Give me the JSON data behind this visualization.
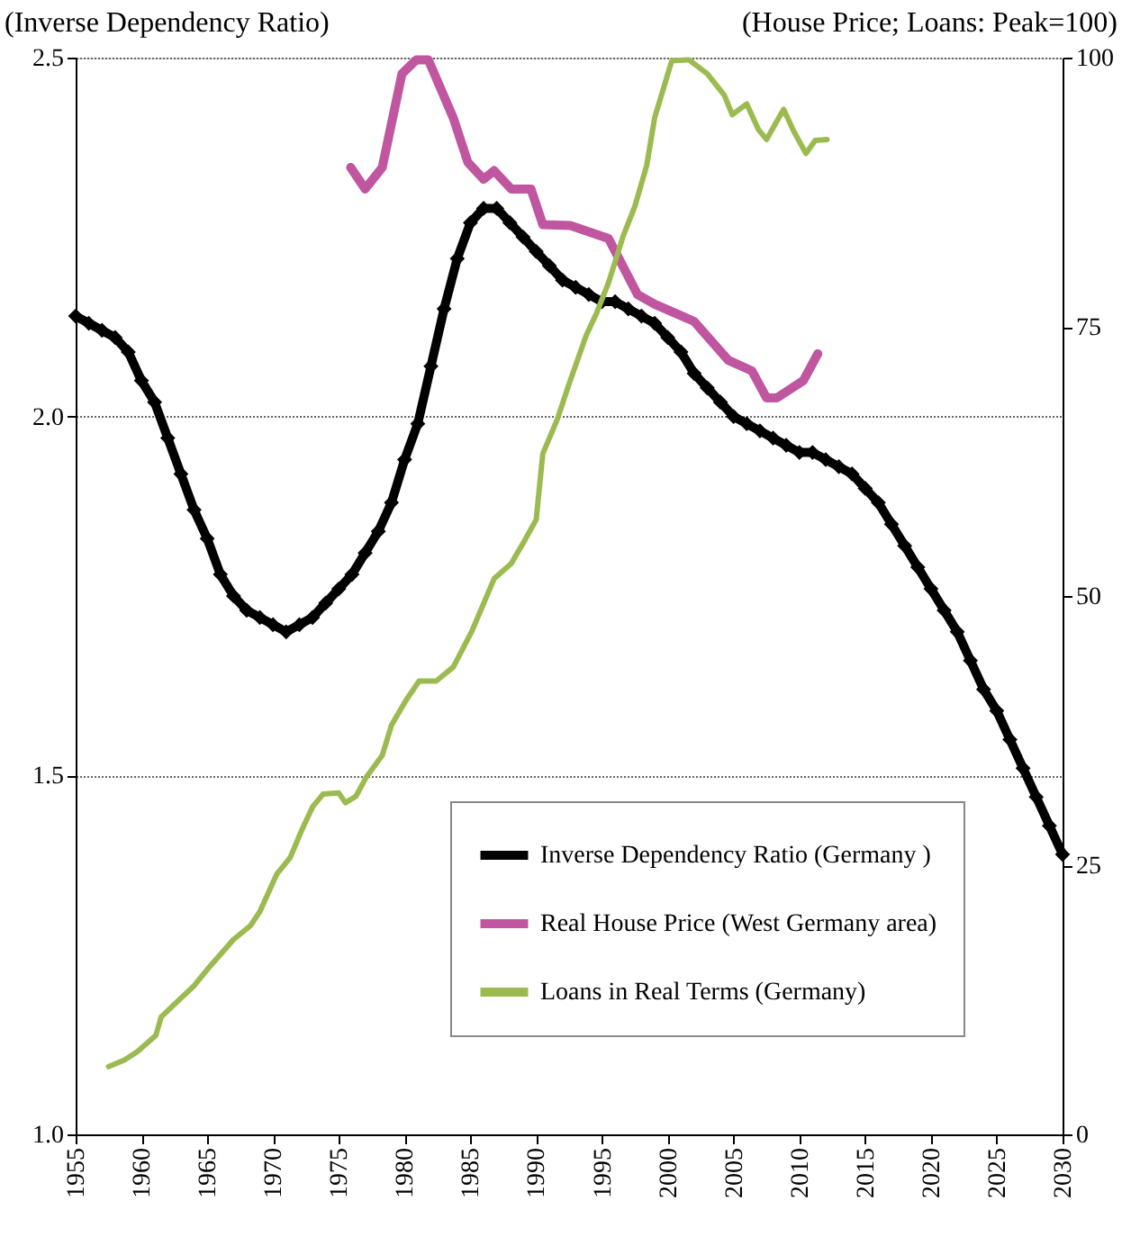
{
  "chart_data": {
    "type": "line",
    "ylabel": "(Inverse Dependency Ratio)",
    "y2label": "(House Price; Loans: Peak=100)",
    "xlim": [
      1955,
      2030
    ],
    "xticks": [
      1955,
      1960,
      1965,
      1970,
      1975,
      1980,
      1985,
      1990,
      1995,
      2000,
      2005,
      2010,
      2015,
      2020,
      2025,
      2030
    ],
    "ylim": [
      1.0,
      2.5
    ],
    "yticks": [
      {
        "value": 1.0,
        "label": "1.0"
      },
      {
        "value": 1.5,
        "label": "1.5"
      },
      {
        "value": 2.0,
        "label": "2.0"
      },
      {
        "value": 2.5,
        "label": "2.5"
      }
    ],
    "y2lim": [
      0,
      100
    ],
    "y2ticks": [
      0,
      25,
      50,
      75,
      100
    ],
    "grid": "y",
    "legend": "bottom right",
    "series": [
      {
        "name": "Inverse Dependency Ratio (Germany )",
        "color": "#000000",
        "marker": "diamond",
        "x": [
          1955,
          1956,
          1957,
          1958,
          1959,
          1960,
          1961,
          1962,
          1963,
          1964,
          1965,
          1966,
          1967,
          1968,
          1969,
          1970,
          1971,
          1972,
          1973,
          1974,
          1975,
          1976,
          1977,
          1978,
          1979,
          1980,
          1981,
          1982,
          1983,
          1984,
          1985,
          1986,
          1987,
          1988,
          1989,
          1990,
          1991,
          1992,
          1993,
          1994,
          1995,
          1996,
          1997,
          1998,
          1999,
          2000,
          2001,
          2002,
          2003,
          2004,
          2005,
          2006,
          2007,
          2008,
          2009,
          2010,
          2011,
          2012,
          2013,
          2014,
          2015,
          2016,
          2017,
          2018,
          2019,
          2020,
          2021,
          2022,
          2023,
          2024,
          2025,
          2026,
          2027,
          2028,
          2029,
          2030
        ],
        "values": [
          2.14,
          2.13,
          2.12,
          2.11,
          2.09,
          2.05,
          2.02,
          1.97,
          1.92,
          1.87,
          1.83,
          1.78,
          1.75,
          1.73,
          1.72,
          1.71,
          1.7,
          1.71,
          1.72,
          1.74,
          1.76,
          1.78,
          1.81,
          1.84,
          1.88,
          1.94,
          1.99,
          2.07,
          2.15,
          2.22,
          2.27,
          2.29,
          2.29,
          2.27,
          2.25,
          2.23,
          2.21,
          2.19,
          2.18,
          2.17,
          2.16,
          2.16,
          2.15,
          2.14,
          2.13,
          2.11,
          2.09,
          2.06,
          2.04,
          2.02,
          2.0,
          1.99,
          1.98,
          1.97,
          1.96,
          1.95,
          1.95,
          1.94,
          1.93,
          1.92,
          1.9,
          1.88,
          1.85,
          1.82,
          1.79,
          1.76,
          1.73,
          1.7,
          1.66,
          1.62,
          1.59,
          1.55,
          1.51,
          1.47,
          1.43,
          1.39
        ]
      },
      {
        "name": "Real House Price (West Germany area)",
        "color": "#c055a0",
        "axis": "y2",
        "marker": "none",
        "x": [
          1975.9,
          1977.0,
          1978.3,
          1979.8,
          1980.9,
          1981.8,
          1983.7,
          1984.8,
          1986.0,
          1986.8,
          1988.1,
          1989.6,
          1990.5,
          1992.6,
          1995.5,
          1997.7,
          1999.0,
          2002.0,
          2004.6,
          2006.4,
          2007.5,
          2008.3,
          2010.3,
          2011.4
        ],
        "values": [
          89.8,
          87.8,
          89.8,
          98.5,
          99.8,
          99.8,
          94.4,
          90.3,
          88.7,
          89.5,
          87.8,
          87.8,
          84.5,
          84.4,
          83.2,
          78.0,
          77.1,
          75.5,
          71.9,
          70.9,
          68.4,
          68.4,
          70.0,
          72.5
        ]
      },
      {
        "name": "Loans in Real Terms (Germany)",
        "color": "#9bbb50",
        "axis": "y2",
        "marker": "none",
        "x": [
          1957.5,
          1958.7,
          1959.7,
          1961.1,
          1961.5,
          1962.7,
          1964.0,
          1965.2,
          1967.0,
          1968.3,
          1969.0,
          1970.3,
          1971.3,
          1972.2,
          1973.0,
          1973.8,
          1975.0,
          1975.5,
          1976.3,
          1977.1,
          1978.3,
          1979.0,
          1980.1,
          1981.1,
          1982.4,
          1983.7,
          1985.1,
          1986.8,
          1988.1,
          1989.0,
          1990.0,
          1990.5,
          1991.6,
          1992.5,
          1993.8,
          1994.6,
          1995.5,
          1996.6,
          1997.5,
          1998.4,
          1999.0,
          2000.3,
          2001.6,
          2003.0,
          2004.3,
          2004.9,
          2006.0,
          2006.9,
          2007.5,
          2008.8,
          2009.6,
          2010.5,
          2011.2,
          2012.1
        ],
        "values": [
          6.3,
          6.9,
          7.7,
          9.2,
          10.9,
          12.3,
          13.8,
          15.6,
          18.1,
          19.4,
          20.7,
          24.2,
          25.7,
          28.3,
          30.4,
          31.6,
          31.7,
          30.8,
          31.4,
          33.2,
          35.2,
          38.0,
          40.3,
          42.1,
          42.1,
          43.4,
          46.7,
          51.6,
          53.0,
          54.9,
          57.1,
          63.2,
          66.4,
          69.7,
          74.2,
          76.3,
          79.1,
          83.4,
          86.2,
          90.0,
          94.4,
          99.7,
          99.8,
          98.5,
          96.5,
          94.7,
          95.7,
          93.3,
          92.4,
          95.2,
          93.1,
          91.1,
          92.3,
          92.4
        ]
      }
    ]
  }
}
